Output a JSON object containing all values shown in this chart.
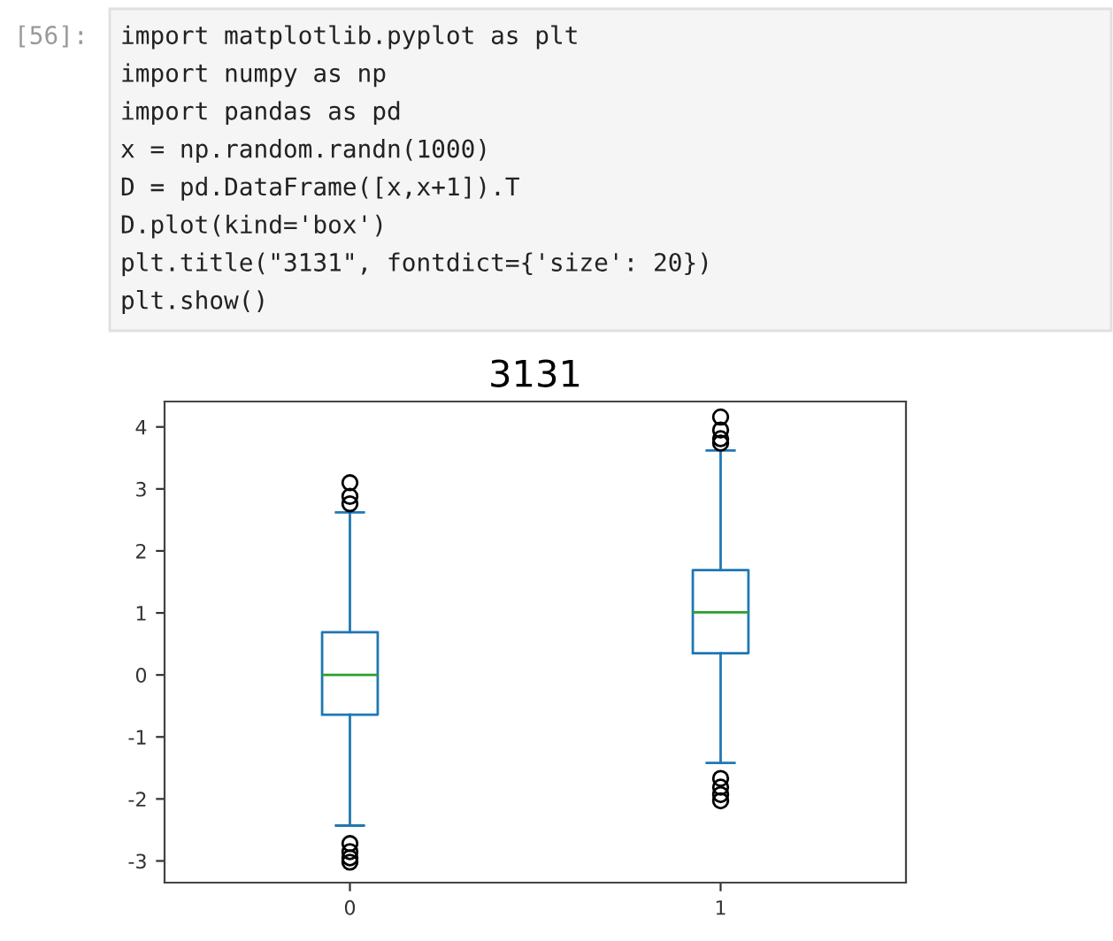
{
  "chart_data": {
    "type": "box",
    "title": "3131",
    "categories": [
      "0",
      "1"
    ],
    "series": [
      {
        "color": "#1f77b4",
        "boxes": [
          {
            "low": -2.43,
            "q1": -0.64,
            "median": 0.0,
            "q3": 0.69,
            "high": 2.62,
            "outliers": [
              3.1,
              2.88,
              2.76,
              -2.72,
              -2.85,
              -2.95,
              -3.02
            ]
          },
          {
            "low": -1.42,
            "q1": 0.35,
            "median": 1.01,
            "q3": 1.69,
            "high": 3.62,
            "outliers": [
              4.16,
              3.95,
              3.81,
              3.74,
              -1.67,
              -1.81,
              -1.93,
              -2.03
            ]
          }
        ]
      }
    ],
    "ylim": [
      -3.35,
      4.41
    ],
    "yticks": [
      -3,
      -2,
      -1,
      0,
      1,
      2,
      3,
      4
    ],
    "grid": false,
    "legend": false,
    "annotations": [
      "[56]:",
      "import matplotlib.pyplot as plt",
      "import numpy as np",
      "import pandas as pd",
      "x = np.random.randn(1000)",
      "D = pd.DataFrame([x,x+1]).T",
      "D.plot(kind='box')",
      "plt.title(\"3131\", fontdict={'size': 20})",
      "plt.show()"
    ]
  }
}
